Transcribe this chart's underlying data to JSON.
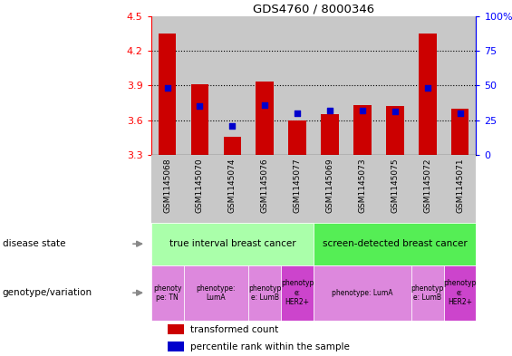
{
  "title": "GDS4760 / 8000346",
  "samples": [
    "GSM1145068",
    "GSM1145070",
    "GSM1145074",
    "GSM1145076",
    "GSM1145077",
    "GSM1145069",
    "GSM1145073",
    "GSM1145075",
    "GSM1145072",
    "GSM1145071"
  ],
  "transformed_count": [
    4.35,
    3.91,
    3.46,
    3.93,
    3.6,
    3.65,
    3.73,
    3.72,
    4.35,
    3.7
  ],
  "percentile_rank": [
    48,
    35,
    21,
    36,
    30,
    32,
    32,
    31,
    48,
    30
  ],
  "ylim": [
    3.3,
    4.5
  ],
  "yticks": [
    3.3,
    3.6,
    3.9,
    4.2,
    4.5
  ],
  "y2ticks": [
    0,
    25,
    50,
    75,
    100
  ],
  "y2lim": [
    0,
    100
  ],
  "bar_color": "#cc0000",
  "dot_color": "#0000cc",
  "disease_state_groups": [
    {
      "label": "true interval breast cancer",
      "start": 0,
      "end": 4,
      "color": "#aaffaa"
    },
    {
      "label": "screen-detected breast cancer",
      "start": 5,
      "end": 9,
      "color": "#55ee55"
    }
  ],
  "genotype_groups": [
    {
      "label": "phenoty\npe: TN",
      "start": 0,
      "end": 0,
      "color": "#dd88dd"
    },
    {
      "label": "phenotype:\nLumA",
      "start": 1,
      "end": 2,
      "color": "#dd88dd"
    },
    {
      "label": "phenotyp\ne: LumB",
      "start": 3,
      "end": 3,
      "color": "#dd88dd"
    },
    {
      "label": "phenotyp\ne:\nHER2+",
      "start": 4,
      "end": 4,
      "color": "#cc44cc"
    },
    {
      "label": "phenotype: LumA",
      "start": 5,
      "end": 7,
      "color": "#dd88dd"
    },
    {
      "label": "phenotyp\ne: LumB",
      "start": 8,
      "end": 8,
      "color": "#dd88dd"
    },
    {
      "label": "phenotyp\ne:\nHER2+",
      "start": 9,
      "end": 9,
      "color": "#cc44cc"
    }
  ],
  "bg_color": "#c8c8c8",
  "bar_width": 0.55,
  "dot_size": 18,
  "label_disease_state": "disease state",
  "label_genotype": "genotype/variation",
  "legend_items": [
    {
      "label": "transformed count",
      "color": "#cc0000"
    },
    {
      "label": "percentile rank within the sample",
      "color": "#0000cc"
    }
  ]
}
